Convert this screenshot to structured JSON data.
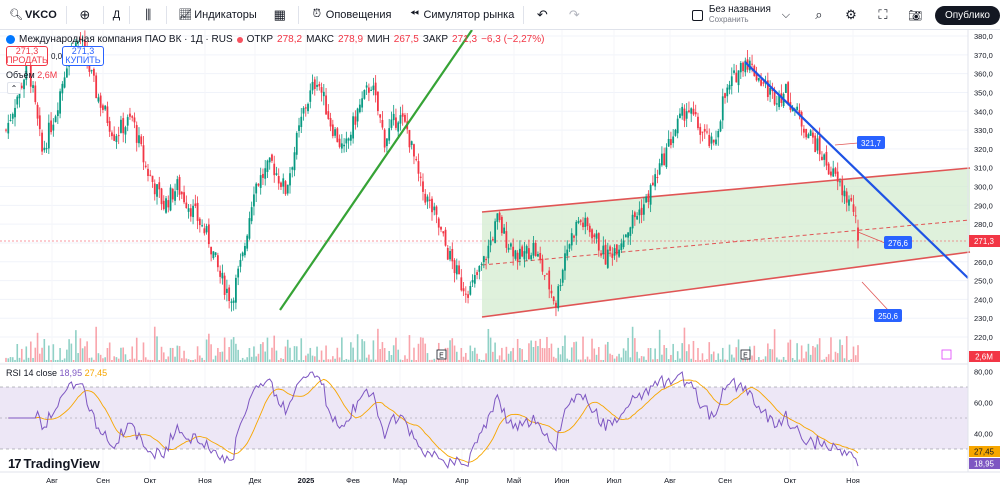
{
  "toolbar": {
    "symbol": "VKCO",
    "interval": "Д",
    "indicators_label": "Индикаторы",
    "alerts_label": "Оповещения",
    "replay_label": "Симулятор рынка",
    "layout_name": "Без названия",
    "layout_status": "Сохранить",
    "publish_label": "Опублико"
  },
  "legend": {
    "name": "Международная компания ПАО ВК · 1Д · RUS",
    "open_label": "ОТКР",
    "open_value": "278,2",
    "high_label": "МАКС",
    "high_value": "278,9",
    "low_label": "МИН",
    "low_value": "267,5",
    "close_label": "ЗАКР",
    "close_value": "271,3",
    "change": "−6,3 (−2,27%)",
    "sell_price": "271,3",
    "sell_label": "ПРОДАТЬ",
    "buy_price": "271,3",
    "buy_label": "КУПИТЬ",
    "spread": "0,0",
    "volume_label": "Объём",
    "volume_value": "2,6M"
  },
  "rsi_legend": {
    "label": "RSI 14 close",
    "rsi": "18,95",
    "ma": "27,45"
  },
  "brand": "TradingView",
  "colors": {
    "up": "#089981",
    "down": "#f23645",
    "trend_green": "#36a336",
    "trend_blue": "#1e53e5",
    "channel": "#e05555",
    "channel_fill": "#d4ecd0",
    "rsi_line": "#7e57c2",
    "rsi_ma": "#f7a600",
    "rsi_band": "#ede7f6"
  },
  "chart_data": [
    {
      "type": "candlestick",
      "title": "Международная компания ПАО ВК · 1Д · RUS",
      "y_ticks": [
        380,
        370,
        360,
        350,
        340,
        330,
        320,
        310,
        300,
        290,
        280,
        270,
        260,
        250,
        240,
        230,
        220
      ],
      "ylim": [
        215,
        382
      ],
      "x_ticks": [
        "Авг",
        "Сен",
        "Окт",
        "Ноя",
        "Дек",
        "2025",
        "Фев",
        "Мар",
        "Апр",
        "Май",
        "Июн",
        "Июл",
        "Авг",
        "Сен",
        "Окт",
        "Ноя"
      ],
      "last_price": 271.3,
      "price_path": [
        [
          0,
          330
        ],
        [
          4,
          345
        ],
        [
          10,
          365
        ],
        [
          16,
          318
        ],
        [
          22,
          340
        ],
        [
          28,
          372
        ],
        [
          33,
          378
        ],
        [
          40,
          350
        ],
        [
          48,
          328
        ],
        [
          56,
          336
        ],
        [
          62,
          310
        ],
        [
          70,
          290
        ],
        [
          76,
          300
        ],
        [
          84,
          285
        ],
        [
          90,
          272
        ],
        [
          95,
          252
        ],
        [
          100,
          240
        ],
        [
          105,
          262
        ],
        [
          110,
          300
        ],
        [
          118,
          312
        ],
        [
          124,
          298
        ],
        [
          132,
          340
        ],
        [
          138,
          358
        ],
        [
          144,
          334
        ],
        [
          150,
          318
        ],
        [
          156,
          340
        ],
        [
          162,
          355
        ],
        [
          168,
          325
        ],
        [
          174,
          338
        ],
        [
          178,
          330
        ],
        [
          184,
          300
        ],
        [
          190,
          285
        ],
        [
          196,
          265
        ],
        [
          202,
          248
        ],
        [
          206,
          245
        ],
        [
          212,
          260
        ],
        [
          218,
          282
        ],
        [
          222,
          272
        ],
        [
          228,
          262
        ],
        [
          234,
          268
        ],
        [
          240,
          250
        ],
        [
          244,
          238
        ],
        [
          248,
          265
        ],
        [
          254,
          282
        ],
        [
          260,
          276
        ],
        [
          266,
          262
        ],
        [
          272,
          270
        ],
        [
          278,
          282
        ],
        [
          284,
          292
        ],
        [
          290,
          310
        ],
        [
          296,
          328
        ],
        [
          302,
          342
        ],
        [
          308,
          330
        ],
        [
          314,
          320
        ],
        [
          318,
          345
        ],
        [
          324,
          360
        ],
        [
          328,
          368
        ],
        [
          334,
          358
        ],
        [
          340,
          348
        ],
        [
          346,
          350
        ],
        [
          352,
          336
        ],
        [
          358,
          325
        ],
        [
          364,
          312
        ],
        [
          370,
          300
        ],
        [
          376,
          288
        ],
        [
          378,
          271.3
        ]
      ],
      "annotations": [
        {
          "type": "price_label",
          "text": "321,7"
        },
        {
          "type": "price_label",
          "text": "276,6"
        },
        {
          "type": "price_label",
          "text": "250,6"
        },
        {
          "type": "price_label",
          "text": "271,3"
        }
      ]
    },
    {
      "type": "bar",
      "title": "Объём",
      "last_label": "2,6M"
    },
    {
      "type": "line",
      "title": "RSI 14 close",
      "y_ticks": [
        80,
        60,
        40
      ],
      "bands": [
        30,
        70
      ],
      "last_rsi": 18.95,
      "last_ma": 27.45
    }
  ]
}
